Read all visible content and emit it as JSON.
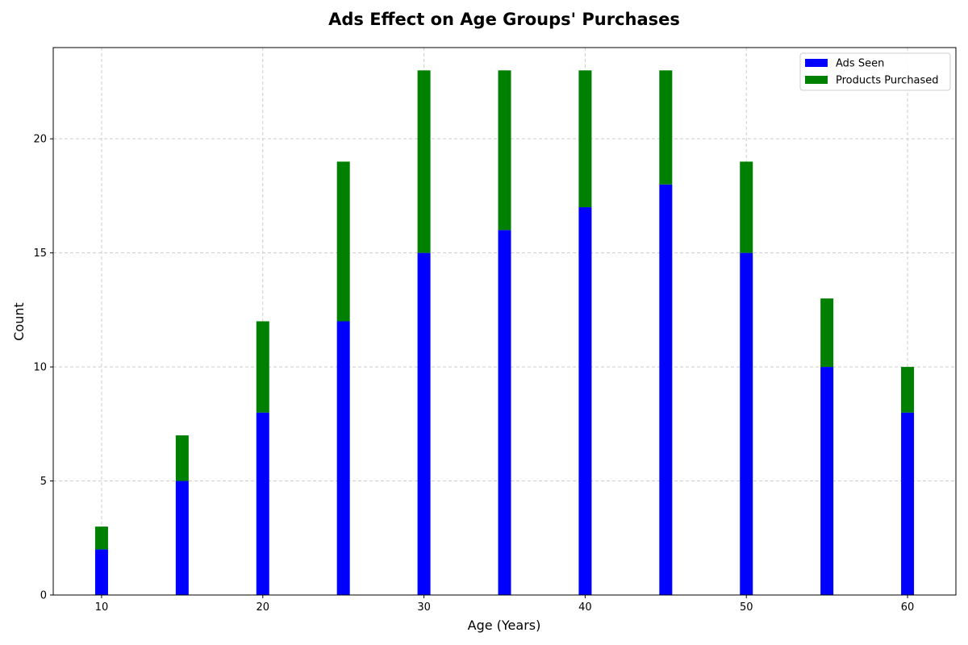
{
  "chart_data": {
    "type": "bar",
    "stacked": true,
    "title": "Ads Effect on Age Groups' Purchases",
    "xlabel": "Age (Years)",
    "ylabel": "Count",
    "x": [
      10,
      15,
      20,
      25,
      30,
      35,
      40,
      45,
      50,
      55,
      60
    ],
    "xlim": [
      7,
      63
    ],
    "ylim": [
      0,
      24
    ],
    "xticks": [
      10,
      20,
      30,
      40,
      50,
      60
    ],
    "yticks": [
      0,
      5,
      10,
      15,
      20
    ],
    "grid": true,
    "legend_position": "top-right",
    "series": [
      {
        "name": "Ads Seen",
        "color": "#0000ff",
        "values": [
          2,
          5,
          8,
          12,
          15,
          16,
          17,
          18,
          15,
          10,
          8
        ]
      },
      {
        "name": "Products Purchased",
        "color": "#008000",
        "values": [
          1,
          2,
          4,
          7,
          8,
          7,
          6,
          5,
          4,
          3,
          2
        ]
      }
    ]
  }
}
